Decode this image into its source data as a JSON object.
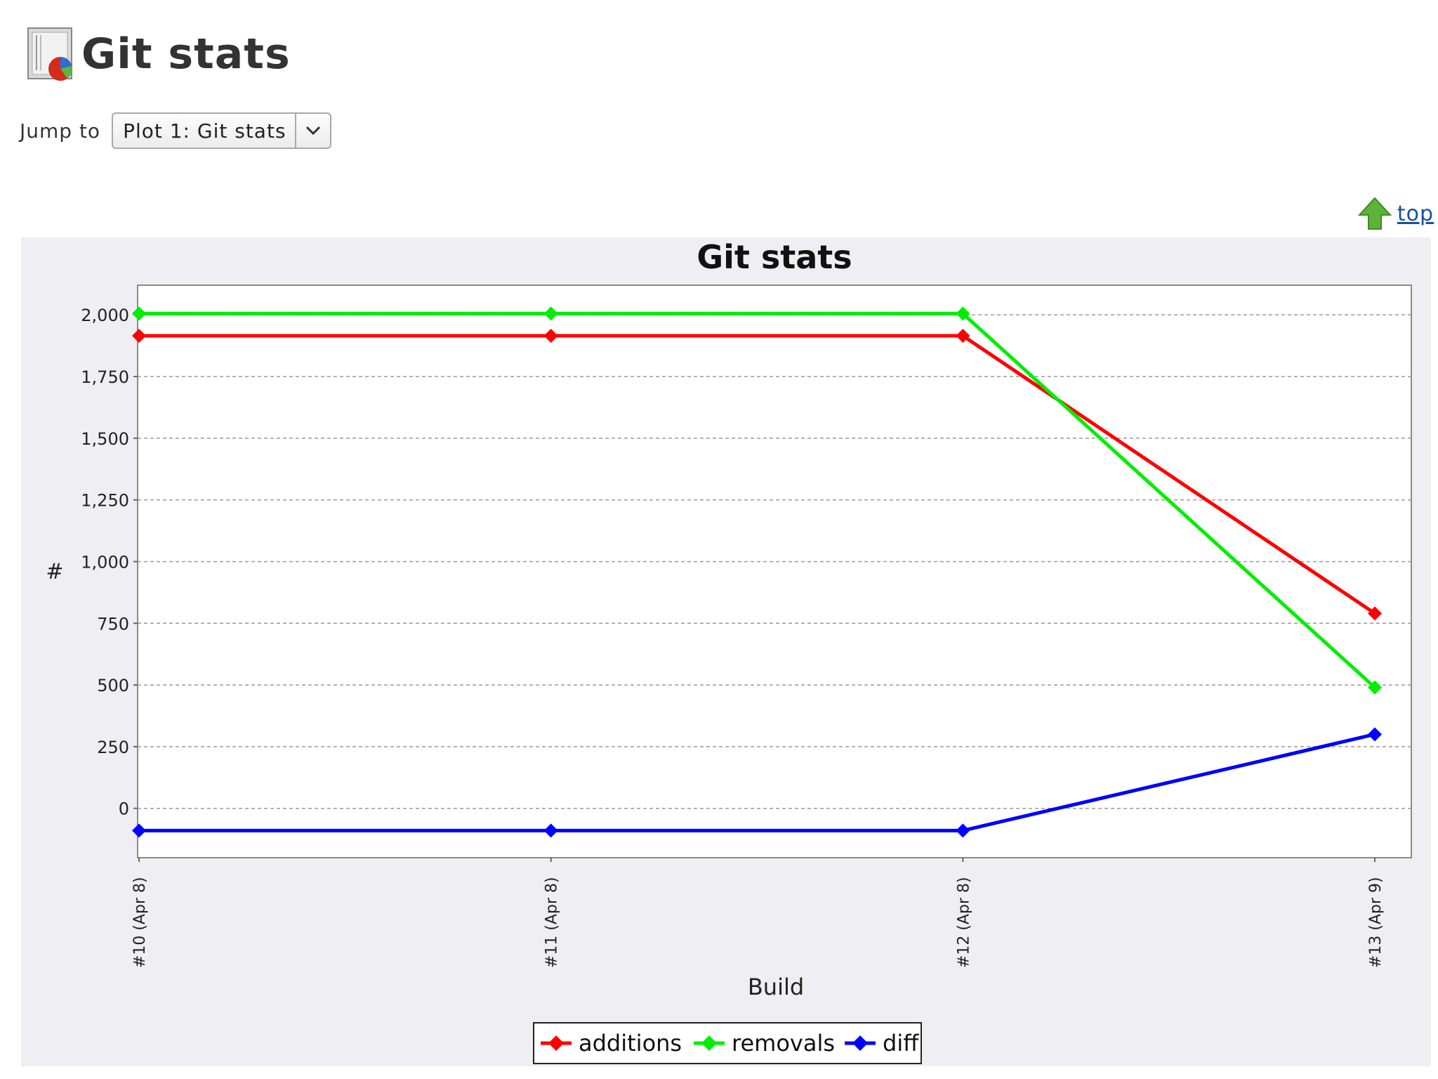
{
  "header": {
    "title": "Git stats",
    "icon": "plot-chart-icon"
  },
  "jump": {
    "label": "Jump to",
    "selected": "Plot 1: Git stats"
  },
  "top_link": {
    "label": "top",
    "icon": "up-arrow-icon"
  },
  "colors": {
    "additions": "#ff0000",
    "removals": "#00ee00",
    "diff": "#0000ff",
    "link": "#1a4fa0"
  },
  "chart_data": {
    "type": "line",
    "title": "Git stats",
    "xlabel": "Build",
    "ylabel": "#",
    "categories": [
      "#10 (Apr 8)",
      "#11 (Apr 8)",
      "#12 (Apr 8)",
      "#13 (Apr 9)"
    ],
    "ylim": [
      -200,
      2120
    ],
    "yticks": [
      0,
      250,
      500,
      750,
      1000,
      1250,
      1500,
      1750,
      2000
    ],
    "ytick_labels": [
      "0",
      "250",
      "500",
      "750",
      "1,000",
      "1,250",
      "1,500",
      "1,750",
      "2,000"
    ],
    "grid": true,
    "legend_position": "bottom",
    "series": [
      {
        "name": "additions",
        "color": "#ff0000",
        "values": [
          1915,
          1915,
          1915,
          790
        ]
      },
      {
        "name": "removals",
        "color": "#00ee00",
        "values": [
          2005,
          2005,
          2005,
          490
        ]
      },
      {
        "name": "diff",
        "color": "#0000ff",
        "values": [
          -90,
          -90,
          -90,
          300
        ]
      }
    ]
  }
}
